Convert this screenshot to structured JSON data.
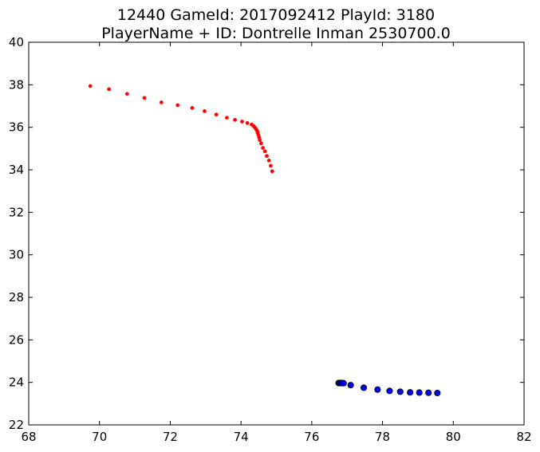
{
  "chart_data": {
    "type": "scatter",
    "title": "12440 GameId: 2017092412 PlayId: 3180",
    "subtitle": "PlayerName + ID: Dontrelle Inman 2530700.0",
    "xlabel": "",
    "ylabel": "",
    "xlim": [
      68,
      82
    ],
    "ylim": [
      22,
      40
    ],
    "xticks": [
      68,
      70,
      72,
      74,
      76,
      78,
      80,
      82
    ],
    "yticks": [
      22,
      24,
      26,
      28,
      30,
      32,
      34,
      36,
      38,
      40
    ],
    "xtick_labels": [
      "68",
      "70",
      "72",
      "74",
      "76",
      "78",
      "80",
      "82"
    ],
    "ytick_labels": [
      "22",
      "24",
      "26",
      "28",
      "30",
      "32",
      "34",
      "36",
      "38",
      "40"
    ],
    "grid": false,
    "series": [
      {
        "color": "#ff0000",
        "marker": "dot-small",
        "points": [
          [
            69.74,
            37.94
          ],
          [
            70.27,
            37.79
          ],
          [
            70.78,
            37.57
          ],
          [
            71.27,
            37.38
          ],
          [
            71.75,
            37.17
          ],
          [
            72.21,
            37.04
          ],
          [
            72.62,
            36.91
          ],
          [
            72.97,
            36.76
          ],
          [
            73.3,
            36.6
          ],
          [
            73.6,
            36.45
          ],
          [
            73.83,
            36.35
          ],
          [
            74.03,
            36.27
          ],
          [
            74.18,
            36.2
          ],
          [
            74.3,
            36.13
          ],
          [
            74.36,
            36.05
          ],
          [
            74.4,
            35.98
          ],
          [
            74.43,
            35.9
          ],
          [
            74.46,
            35.82
          ],
          [
            74.47,
            35.74
          ],
          [
            74.49,
            35.64
          ],
          [
            74.51,
            35.53
          ],
          [
            74.53,
            35.4
          ],
          [
            74.57,
            35.24
          ],
          [
            74.62,
            35.03
          ],
          [
            74.68,
            34.87
          ],
          [
            74.73,
            34.65
          ],
          [
            74.79,
            34.44
          ],
          [
            74.84,
            34.19
          ],
          [
            74.88,
            33.93
          ]
        ]
      },
      {
        "color": "#0000ff",
        "marker": "circle-outlined",
        "points": [
          [
            76.76,
            23.97
          ],
          [
            76.79,
            23.97
          ],
          [
            76.82,
            23.97
          ],
          [
            76.85,
            23.97
          ],
          [
            76.9,
            23.96
          ],
          [
            77.1,
            23.87
          ],
          [
            77.47,
            23.75
          ],
          [
            77.86,
            23.66
          ],
          [
            78.2,
            23.6
          ],
          [
            78.5,
            23.56
          ],
          [
            78.78,
            23.53
          ],
          [
            79.04,
            23.52
          ],
          [
            79.3,
            23.51
          ],
          [
            79.55,
            23.5
          ]
        ]
      }
    ]
  }
}
